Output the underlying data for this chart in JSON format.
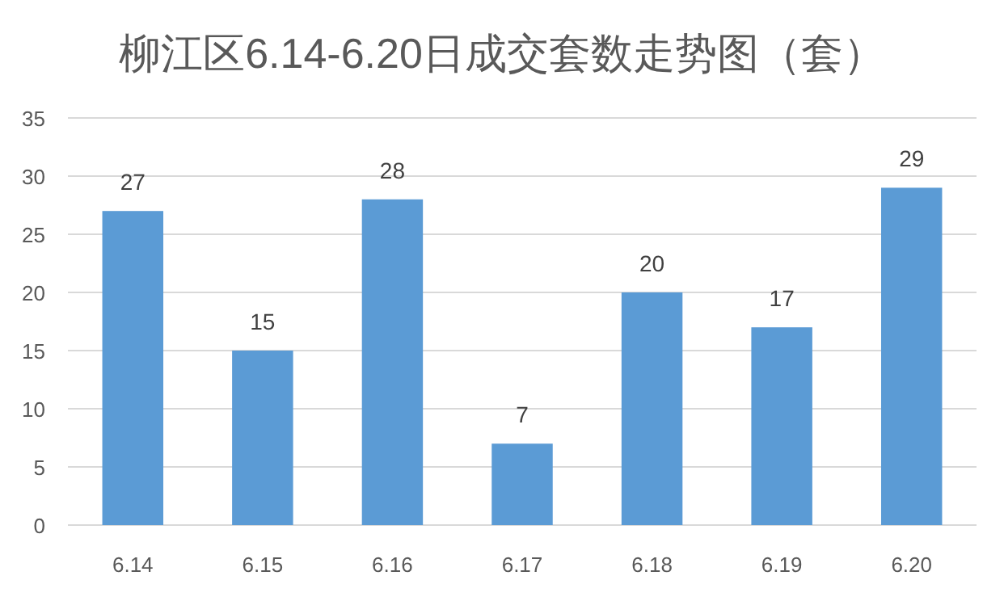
{
  "chart_data": {
    "type": "bar",
    "title": "柳江区6.14-6.20日成交套数走势图（套）",
    "categories": [
      "6.14",
      "6.15",
      "6.16",
      "6.17",
      "6.18",
      "6.19",
      "6.20"
    ],
    "values": [
      27,
      15,
      28,
      7,
      20,
      17,
      29
    ],
    "color": "#5b9bd5",
    "ylim": [
      0,
      35
    ],
    "yticks": [
      0,
      5,
      10,
      15,
      20,
      25,
      30,
      35
    ],
    "grid": "y",
    "data_labels": true
  }
}
